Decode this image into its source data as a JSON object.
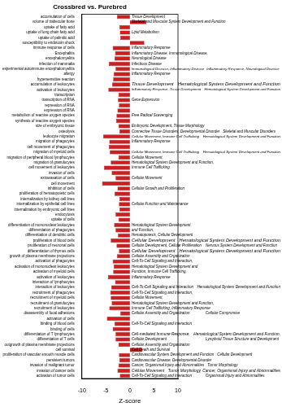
{
  "chart_data": {
    "type": "bar",
    "orientation": "horizontal",
    "title": "Crossbred vs. Purebred",
    "x_label": "Z-score",
    "categories": [
      "accumulation of cells",
      "volume of trabecular bone",
      "uptake of fatty acid",
      "uptake of long chain fatty acid",
      "uptake of palmitic acid",
      "susceptibility to endotoxin shock",
      "immune response of cells",
      "Encephalitis",
      "encephalomyelitis",
      "infection of mammalia",
      "experimental autoimmune encephalomyelitis",
      "allergy",
      "hypersensitive reaction",
      "accumulation of leukocytes",
      "activation of leukocytes",
      "transcription",
      "transcription of RNA",
      "repression of RNA",
      "expression of RNA",
      "metabolism of reactive oxygen species",
      "synthesis of reactive oxygen species",
      "size of embryonic tissue",
      "osteolysis",
      "leukocyte migration",
      "migration of phagocytes",
      "cell movement of phagocytes",
      "migration of myeloid cells",
      "migration of peripheral blood lymphocytes",
      "migration of granulocytes",
      "cell movement of leukocytes",
      "invasion of cells",
      "extravasation of cells",
      "cell movement",
      "inhibition of cells",
      "proliferation of hematopoietic cells",
      "internalization by kidney cell lines",
      "internalization by epithelial cell lines",
      "internalization by embryonic cell lines",
      "endocytosis",
      "uptake of cells",
      "differentiation of mononuclear leukocytes",
      "differentiation of phagocytes",
      "differentiation of dendritic cells",
      "proliferation of blood cells",
      "proliferation of neuronal cells",
      "differentiation of thymus cells",
      "growth of plasma membrane projections",
      "activation of phagocytes",
      "activation of mononuclear leukocytes",
      "activation of myeloid cells",
      "activation of leukocytes",
      "interaction of lymphocytes",
      "interaction of leukocytes",
      "recruitment of phagocytes",
      "recruitment of myeloid cells",
      "recruitment of granulocytes",
      "recruitment of leukocytes",
      "disassembly of focal adhesions",
      "activation of cells",
      "binding of blood cells",
      "binding of cells",
      "differentiation of T lymphocytes",
      "differentiation of T cells",
      "outgrowth of plasma membrane projections",
      "cell survival",
      "proliferation of vascular smooth muscle cells",
      "persistent tumors",
      "invasion of malignant tumor",
      "invasion of cancer cells",
      "activation of tumor cells"
    ],
    "values": [
      -2.7,
      3.4,
      -2.2,
      -2.1,
      -2.0,
      3.0,
      -3.6,
      -3.1,
      -3.2,
      -4.4,
      -3.0,
      -3.4,
      -3.5,
      -3.7,
      -4.5,
      -2.4,
      -2.5,
      -2.3,
      -2.6,
      -2.8,
      -2.9,
      -2.4,
      -2.2,
      -5.6,
      -4.3,
      -4.4,
      -4.2,
      -2.4,
      -4.0,
      -5.4,
      -3.8,
      -3.0,
      -5.8,
      -2.6,
      -3.2,
      -2.2,
      -2.3,
      -2.2,
      -3.0,
      -2.4,
      -3.3,
      -3.0,
      -2.5,
      -4.0,
      -2.8,
      -2.3,
      -2.7,
      -3.6,
      -3.4,
      -3.5,
      -4.6,
      -3.1,
      -3.9,
      -4.1,
      -4.0,
      -3.8,
      -4.3,
      -2.0,
      -4.8,
      -3.2,
      -3.6,
      -3.0,
      -3.0,
      -2.4,
      2.6,
      -2.3,
      -2.2,
      -2.4,
      -2.6,
      -2.1
    ],
    "group_labels": [
      "Tissue Development",
      "Skeletal and Muscular System Development and Function",
      null,
      "Lipid Metabolism",
      null,
      null,
      "Inflammatory Response",
      "Inflammatory Disease, Immunological Disease,",
      "Neurological Disease",
      "Infectious Disease",
      "Immunological Disease, Inflammatory Disease",
      "Inflammatory Response",
      null,
      "Tissue Development",
      "Inflammatory Response, Tissue Development",
      null,
      "Gene Expression",
      null,
      null,
      "Free Radical Scavenging",
      null,
      "Embryonic Development, Tissue Morphology",
      "Connective Tissue Disorders, Developmental Disorder",
      "Cellular Movement, Immune Cell Trafficking",
      "Inflammatory Response",
      null,
      "Cellular Movement, Immune Cell Trafficking",
      "Cellular Movement,",
      "Hematological System Development and Function,",
      "Immune Cell Trafficking",
      null,
      "Cellular Movement",
      null,
      "Cellular Growth and Proliferation",
      null,
      null,
      "Cellular Function and Maintenance",
      null,
      null,
      null,
      "Hematological System Development",
      "and Function,",
      "Hematopoiesis, Cellular Development",
      "Cellular Development",
      "Cellular Development, Cellular Proliferation",
      "Cellular Development",
      "Cellular Assembly and Organization",
      "Cell-To-Cell Signaling and Interaction,",
      "Hematological System Development and",
      "Function, Immune Cell Trafficking,",
      "Inflammatory Response",
      null,
      "Cell-To-Cell Signaling and Interaction",
      "Cell-To-Cell Signaling and Interaction,",
      "Cellular Movement,",
      "Hematological System Development and Function,",
      "Immune Cell Trafficking, Inflammatory Response",
      "Cellular Assembly and Organization",
      null,
      "Cell-To-Cell Signaling and Interaction",
      null,
      "Cell-mediated Immune Response,",
      "Cellular Development",
      "Cellular Assembly and Organization",
      "Cell Death and Survival",
      "Cardiovascular System Development and Function",
      "Cardiovascular Disease, Developmental Disorder",
      "Cancer, Organismal Injury and Abnormalities",
      "Cellular Movement",
      "Cell-To-Cell Signaling and Interaction"
    ],
    "group_labels_2": [
      null,
      null,
      null,
      null,
      null,
      null,
      null,
      null,
      null,
      null,
      "Inflammatory Response, Neurological Disease",
      null,
      null,
      "Hematological System Development and Function",
      "Hematological System Development and Function",
      null,
      null,
      null,
      null,
      null,
      null,
      null,
      "Skeletal and Muscular Disorders",
      "Hematological System Development and Function",
      null,
      null,
      "Hematological System Development and Function",
      null,
      null,
      null,
      null,
      null,
      null,
      null,
      null,
      null,
      null,
      null,
      null,
      null,
      null,
      null,
      null,
      "Hematological System Development and Function",
      "Nervous System Development and Function",
      "Hematological System Development and Function",
      null,
      null,
      null,
      null,
      null,
      null,
      "Hematological System Development and Function",
      null,
      null,
      null,
      null,
      "Cellular Compromise",
      null,
      null,
      null,
      "Hematological System Development and Function,",
      "Lymphoid Tissue Structure and Development",
      null,
      null,
      "Cellular Development",
      null,
      "Tumor Morphology",
      "Tumor Morphology, Cancer, Organismal Injury and Abnormalities",
      "Organismal Injury and Abnormalities"
    ],
    "color": "#cc1f1f",
    "xlim": [
      -10,
      10
    ],
    "xticks": [
      -10,
      -5,
      0,
      5,
      10
    ],
    "grid": false
  }
}
